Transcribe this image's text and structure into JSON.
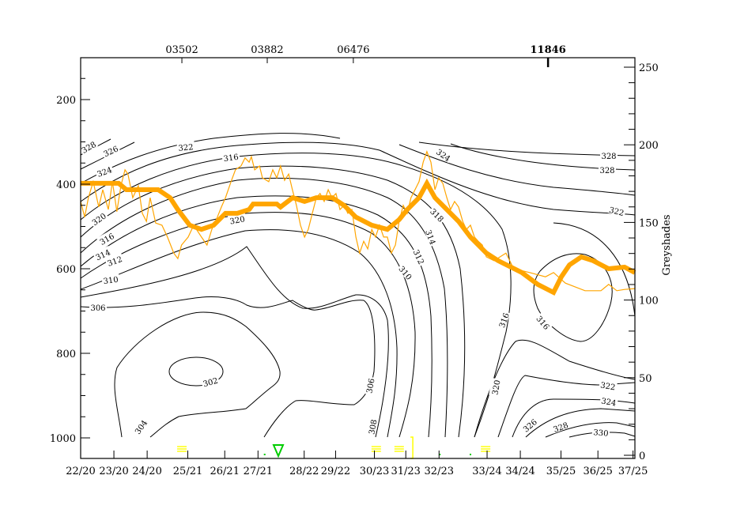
{
  "chart_data": {
    "type": "line",
    "title": "",
    "xlabel": "",
    "ylabel": "",
    "y2label": "Greyshades",
    "ylim": [
      1050,
      100
    ],
    "y2lim": [
      0,
      250
    ],
    "xlim": [
      0,
      15
    ],
    "grid": false,
    "colors": {
      "thick": "#ffa500",
      "thin": "#ffa500",
      "contour": "#000000",
      "fog": "#ffff00",
      "shower": "#00cc00"
    },
    "y_ticks": [
      {
        "value": 200,
        "label": "200"
      },
      {
        "value": 400,
        "label": "400"
      },
      {
        "value": 600,
        "label": "600"
      },
      {
        "value": 800,
        "label": "800"
      },
      {
        "value": 1000,
        "label": "1000"
      }
    ],
    "y2_ticks": [
      {
        "value": 0,
        "label": "0"
      },
      {
        "value": 50,
        "label": "50"
      },
      {
        "value": 100,
        "label": "100"
      },
      {
        "value": 150,
        "label": "150"
      },
      {
        "value": 200,
        "label": "200"
      },
      {
        "value": 250,
        "label": "250"
      }
    ],
    "x_ticks": [
      {
        "t": 0,
        "label": "22/20"
      },
      {
        "t": 0.9,
        "label": "23/20"
      },
      {
        "t": 1.8,
        "label": "24/20"
      },
      {
        "t": 2.9,
        "label": "25/21"
      },
      {
        "t": 3.9,
        "label": "26/21"
      },
      {
        "t": 4.8,
        "label": "27/21"
      },
      {
        "t": 6.05,
        "label": "28/22"
      },
      {
        "t": 6.9,
        "label": "29/22"
      },
      {
        "t": 7.95,
        "label": "30/23"
      },
      {
        "t": 8.8,
        "label": "31/23"
      },
      {
        "t": 9.7,
        "label": "32/23"
      },
      {
        "t": 11.0,
        "label": "33/24"
      },
      {
        "t": 11.9,
        "label": "34/24"
      },
      {
        "t": 13.0,
        "label": "35/25"
      },
      {
        "t": 14.0,
        "label": "36/25"
      },
      {
        "t": 14.95,
        "label": "37/25"
      }
    ],
    "stations": [
      {
        "t": 2.74,
        "label": "03502"
      },
      {
        "t": 5.05,
        "label": "03882"
      },
      {
        "t": 7.38,
        "label": "06476"
      },
      {
        "t": 12.65,
        "label": "11846"
      }
    ],
    "contour_labels": [
      "328",
      "326",
      "324",
      "322",
      "316",
      "320",
      "316",
      "314",
      "312",
      "310",
      "306",
      "304",
      "302",
      "308",
      "306",
      "320",
      "324",
      "318",
      "314",
      "312",
      "310",
      "328",
      "328",
      "322",
      "316",
      "316",
      "320",
      "322",
      "324",
      "326",
      "328",
      "330"
    ],
    "series": [
      {
        "name": "thick",
        "points": [
          [
            0,
            398
          ],
          [
            0.39,
            398
          ],
          [
            1.03,
            398
          ],
          [
            1.24,
            413
          ],
          [
            2.1,
            413
          ],
          [
            2.42,
            432
          ],
          [
            2.63,
            460
          ],
          [
            2.95,
            497
          ],
          [
            3.27,
            507
          ],
          [
            3.6,
            497
          ],
          [
            3.92,
            469
          ],
          [
            4.24,
            469
          ],
          [
            4.56,
            460
          ],
          [
            4.67,
            447
          ],
          [
            5.31,
            447
          ],
          [
            5.41,
            454
          ],
          [
            5.74,
            432
          ],
          [
            6.06,
            441
          ],
          [
            6.38,
            432
          ],
          [
            6.81,
            432
          ],
          [
            7.13,
            450
          ],
          [
            7.45,
            478
          ],
          [
            7.88,
            497
          ],
          [
            8.3,
            507
          ],
          [
            8.62,
            484
          ],
          [
            8.84,
            460
          ],
          [
            9.16,
            432
          ],
          [
            9.37,
            398
          ],
          [
            9.59,
            432
          ],
          [
            9.91,
            460
          ],
          [
            10.23,
            488
          ],
          [
            10.55,
            525
          ],
          [
            10.98,
            563
          ],
          [
            11.3,
            581
          ],
          [
            11.94,
            609
          ],
          [
            12.37,
            637
          ],
          [
            12.8,
            656
          ],
          [
            13.01,
            619
          ],
          [
            13.23,
            591
          ],
          [
            13.55,
            572
          ],
          [
            13.87,
            581
          ],
          [
            14.29,
            600
          ],
          [
            14.72,
            596
          ],
          [
            15.0,
            609
          ]
        ]
      },
      {
        "name": "thin",
        "points": [
          [
            0,
            441
          ],
          [
            0.11,
            478
          ],
          [
            0.21,
            432
          ],
          [
            0.34,
            394
          ],
          [
            0.49,
            454
          ],
          [
            0.6,
            413
          ],
          [
            0.75,
            460
          ],
          [
            0.86,
            394
          ],
          [
            0.98,
            465
          ],
          [
            1.09,
            404
          ],
          [
            1.2,
            366
          ],
          [
            1.28,
            376
          ],
          [
            1.41,
            432
          ],
          [
            1.56,
            404
          ],
          [
            1.67,
            469
          ],
          [
            1.78,
            488
          ],
          [
            1.88,
            432
          ],
          [
            2.03,
            492
          ],
          [
            2.2,
            497
          ],
          [
            2.35,
            525
          ],
          [
            2.52,
            563
          ],
          [
            2.63,
            576
          ],
          [
            2.73,
            544
          ],
          [
            2.91,
            525
          ],
          [
            3.06,
            497
          ],
          [
            3.27,
            525
          ],
          [
            3.42,
            544
          ],
          [
            3.55,
            507
          ],
          [
            3.7,
            478
          ],
          [
            3.81,
            454
          ],
          [
            3.92,
            432
          ],
          [
            4.07,
            394
          ],
          [
            4.19,
            366
          ],
          [
            4.34,
            357
          ],
          [
            4.45,
            338
          ],
          [
            4.56,
            348
          ],
          [
            4.62,
            335
          ],
          [
            4.71,
            366
          ],
          [
            4.84,
            357
          ],
          [
            4.92,
            385
          ],
          [
            5.09,
            394
          ],
          [
            5.2,
            366
          ],
          [
            5.31,
            385
          ],
          [
            5.41,
            357
          ],
          [
            5.52,
            391
          ],
          [
            5.63,
            376
          ],
          [
            5.73,
            413
          ],
          [
            5.84,
            450
          ],
          [
            5.95,
            497
          ],
          [
            6.06,
            525
          ],
          [
            6.16,
            507
          ],
          [
            6.27,
            469
          ],
          [
            6.38,
            432
          ],
          [
            6.48,
            422
          ],
          [
            6.59,
            441
          ],
          [
            6.7,
            413
          ],
          [
            6.8,
            432
          ],
          [
            6.91,
            422
          ],
          [
            7.02,
            460
          ],
          [
            7.13,
            450
          ],
          [
            7.23,
            469
          ],
          [
            7.34,
            460
          ],
          [
            7.45,
            525
          ],
          [
            7.55,
            563
          ],
          [
            7.66,
            535
          ],
          [
            7.77,
            553
          ],
          [
            7.88,
            507
          ],
          [
            7.98,
            525
          ],
          [
            8.09,
            497
          ],
          [
            8.2,
            525
          ],
          [
            8.3,
            525
          ],
          [
            8.41,
            563
          ],
          [
            8.52,
            544
          ],
          [
            8.62,
            488
          ],
          [
            8.73,
            450
          ],
          [
            8.84,
            469
          ],
          [
            8.94,
            432
          ],
          [
            9.05,
            413
          ],
          [
            9.16,
            394
          ],
          [
            9.27,
            348
          ],
          [
            9.37,
            323
          ],
          [
            9.48,
            348
          ],
          [
            9.59,
            413
          ],
          [
            9.69,
            385
          ],
          [
            9.8,
            398
          ],
          [
            9.91,
            432
          ],
          [
            10.01,
            460
          ],
          [
            10.12,
            441
          ],
          [
            10.23,
            454
          ],
          [
            10.34,
            488
          ],
          [
            10.44,
            507
          ],
          [
            10.55,
            497
          ],
          [
            10.66,
            525
          ],
          [
            10.76,
            535
          ],
          [
            10.87,
            544
          ],
          [
            10.98,
            572
          ],
          [
            11.19,
            581
          ],
          [
            11.51,
            563
          ],
          [
            11.72,
            600
          ],
          [
            12.15,
            609
          ],
          [
            12.58,
            619
          ],
          [
            12.8,
            609
          ],
          [
            13.12,
            634
          ],
          [
            13.65,
            652
          ],
          [
            14.08,
            652
          ],
          [
            14.29,
            637
          ],
          [
            14.51,
            652
          ],
          [
            14.72,
            649
          ],
          [
            15.0,
            647
          ]
        ]
      }
    ],
    "symbols": [
      {
        "type": "fog",
        "t": 2.74
      },
      {
        "type": "fog",
        "t": 8.0
      },
      {
        "type": "fog",
        "t": 8.62
      },
      {
        "type": "fog",
        "t": 10.96
      },
      {
        "type": "shower",
        "t": 5.35
      },
      {
        "type": "dot",
        "t": 4.98
      },
      {
        "type": "dot",
        "t": 9.72
      },
      {
        "type": "dot",
        "t": 10.55
      },
      {
        "type": "bar",
        "t": 8.99
      }
    ]
  }
}
